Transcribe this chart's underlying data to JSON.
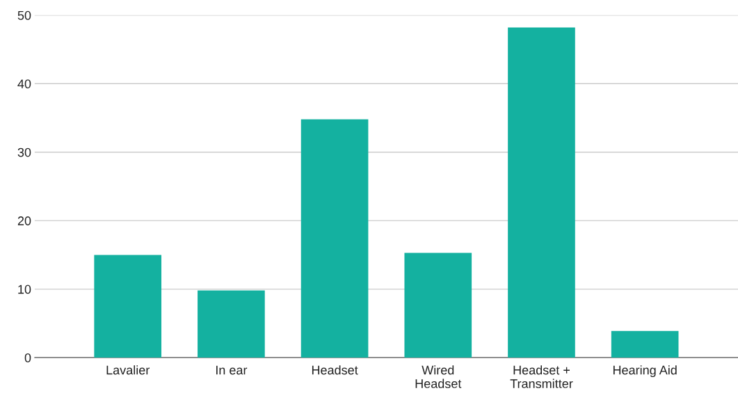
{
  "chart_data": {
    "type": "bar",
    "categories": [
      "Lavalier",
      "In ear",
      "Headset",
      "Wired\nHeadset",
      "Headset +\nTransmitter",
      "Hearing Aid"
    ],
    "values": [
      15,
      9.8,
      34.8,
      15.3,
      48.2,
      3.9
    ],
    "color": "#14b1a0",
    "ylim": [
      0,
      50
    ],
    "yticks": [
      0,
      10,
      20,
      30,
      40,
      50
    ],
    "grid": "y"
  }
}
